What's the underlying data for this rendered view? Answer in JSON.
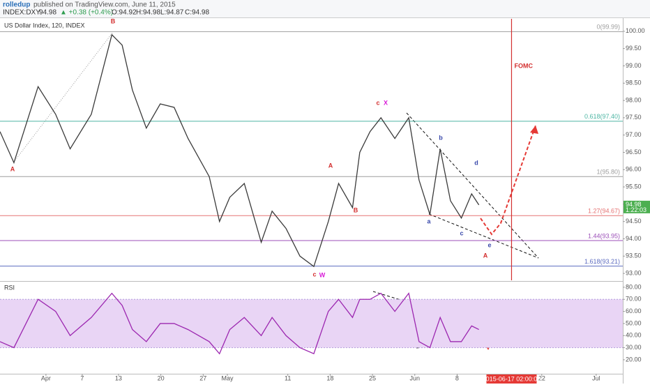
{
  "header": {
    "author": "rolledup",
    "published": "published on TradingView.com, June 11, 2015",
    "symbol": "INDEX:DXY",
    "price": "94.98",
    "change": "▲ +0.38 (+0.4%)",
    "open": "O:94.92",
    "high": "H:94.98",
    "low": "L:94.87",
    "close": "C:94.98"
  },
  "chart_data": [
    {
      "type": "line",
      "title": "US Dollar Index, 120, INDEX",
      "color": "#3a3a3a",
      "x": [
        83.4,
        85.7,
        89.7,
        92.6,
        95,
        98.5,
        101.9,
        103.6,
        105.3,
        107.6,
        109.9,
        112.2,
        114.5,
        118,
        119.7,
        121.4,
        123.8,
        126.6,
        128.4,
        130.7,
        133,
        135.3,
        137.7,
        139.4,
        141.7,
        142.9,
        144.6,
        146.4,
        148.7,
        151,
        152.7,
        154.5,
        156.2,
        157.9,
        159.7,
        161.4,
        162.6
      ],
      "values": [
        97.1,
        96.2,
        98.4,
        97.6,
        96.6,
        97.6,
        99.9,
        99.6,
        98.3,
        97.2,
        97.9,
        97.8,
        96.9,
        95.8,
        94.5,
        95.2,
        95.6,
        93.9,
        94.8,
        94.3,
        93.5,
        93.2,
        94.5,
        95.6,
        94.9,
        96.5,
        97.1,
        97.5,
        96.9,
        97.5,
        95.7,
        94.7,
        96.6,
        95.1,
        94.6,
        95.3,
        94.98
      ],
      "xlim": [
        83.4,
        186.4
      ],
      "ylim": [
        92.8,
        100.36
      ],
      "yticks": [
        {
          "value": 93,
          "label": "93.00"
        },
        {
          "value": 93.5,
          "label": "93.50"
        },
        {
          "value": 94,
          "label": "94.00"
        },
        {
          "value": 94.5,
          "label": "94.50"
        },
        {
          "value": 95,
          "label": "95.00"
        },
        {
          "value": 95.5,
          "label": "95.50"
        },
        {
          "value": 96,
          "label": "96.00"
        },
        {
          "value": 96.5,
          "label": "96.50"
        },
        {
          "value": 97,
          "label": "97.00"
        },
        {
          "value": 97.5,
          "label": "97.50"
        },
        {
          "value": 98,
          "label": "98.00"
        },
        {
          "value": 98.5,
          "label": "98.50"
        },
        {
          "value": 99,
          "label": "99.00"
        },
        {
          "value": 99.5,
          "label": "99.50"
        },
        {
          "value": 100,
          "label": "100.00"
        }
      ],
      "fib_levels": [
        {
          "value": 99.99,
          "label": "0(99.99)",
          "color": "#9e9e9e"
        },
        {
          "value": 97.4,
          "label": "0.618(97.40)",
          "color": "#4cb5a3"
        },
        {
          "value": 95.8,
          "label": "1(95.80)",
          "color": "#9e9e9e"
        },
        {
          "value": 94.67,
          "label": "1.27(94.67)",
          "color": "#e57373"
        },
        {
          "value": 93.95,
          "label": "1.44(93.95)",
          "color": "#9c4fb8"
        },
        {
          "value": 93.21,
          "label": "1.618(93.21)",
          "color": "#5c6bc0"
        }
      ],
      "event": {
        "x": 168,
        "label": "FOMC",
        "color": "#d32f2f"
      },
      "last": {
        "value": 94.98,
        "label": "94.98",
        "countdown": "1:22:03"
      },
      "annotations": [
        {
          "text": "B",
          "color": "#d32f2f"
        },
        {
          "text": "A",
          "color": "#d32f2f"
        },
        {
          "text": "A",
          "color": "#d32f2f"
        },
        {
          "text": "B",
          "color": "#d32f2f"
        },
        {
          "text": "c",
          "color": "#d32f2f"
        },
        {
          "text": "X",
          "color": "#d81bd8"
        },
        {
          "text": "c",
          "color": "#d32f2f"
        },
        {
          "text": "W",
          "color": "#d81bd8"
        },
        {
          "text": "b",
          "color": "#3949ab"
        },
        {
          "text": "a",
          "color": "#3949ab"
        },
        {
          "text": "c",
          "color": "#3949ab"
        },
        {
          "text": "d",
          "color": "#3949ab"
        },
        {
          "text": "e",
          "color": "#3949ab"
        },
        {
          "text": "A",
          "color": "#d32f2f"
        }
      ]
    },
    {
      "type": "line",
      "title": "RSI",
      "color": "#9c27b0",
      "x": [
        83.4,
        85.7,
        89.7,
        92.6,
        95,
        98.5,
        101.9,
        103.6,
        105.3,
        107.6,
        109.9,
        112.2,
        114.5,
        118,
        119.7,
        121.4,
        123.8,
        126.6,
        128.4,
        130.7,
        133,
        135.3,
        137.7,
        139.4,
        141.7,
        142.9,
        144.6,
        146.4,
        148.7,
        151,
        152.7,
        154.5,
        156.2,
        157.9,
        159.7,
        161.4,
        162.6
      ],
      "values": [
        35,
        30,
        70,
        60,
        40,
        55,
        75,
        65,
        45,
        35,
        50,
        50,
        45,
        35,
        25,
        45,
        55,
        40,
        55,
        40,
        30,
        25,
        60,
        70,
        55,
        70,
        70,
        75,
        60,
        75,
        35,
        30,
        55,
        35,
        35,
        48,
        45
      ],
      "xlim": [
        83.4,
        186.4
      ],
      "ylim": [
        9,
        84
      ],
      "band": [
        30,
        70
      ],
      "band_color": "#e9d5f5",
      "yticks": [
        {
          "value": 20,
          "label": "20.00"
        },
        {
          "value": 30,
          "label": "30.00"
        },
        {
          "value": 40,
          "label": "40.00"
        },
        {
          "value": 50,
          "label": "50.00"
        },
        {
          "value": 60,
          "label": "60.00"
        },
        {
          "value": 70,
          "label": "70.00"
        },
        {
          "value": 80,
          "label": "80.00"
        }
      ],
      "xticks": [
        {
          "value": 91,
          "label": "Apr"
        },
        {
          "value": 97,
          "label": "7"
        },
        {
          "value": 103,
          "label": "13"
        },
        {
          "value": 110,
          "label": "20"
        },
        {
          "value": 117,
          "label": "27"
        },
        {
          "value": 121,
          "label": "May"
        },
        {
          "value": 131,
          "label": "11"
        },
        {
          "value": 138,
          "label": "18"
        },
        {
          "value": 145,
          "label": "25"
        },
        {
          "value": 152,
          "label": "Jun"
        },
        {
          "value": 159,
          "label": "8"
        },
        {
          "value": 173,
          "label": "22"
        },
        {
          "value": 182,
          "label": "Jul"
        }
      ],
      "cursor": {
        "x": 168,
        "label": "2015-06-17 02:00:00"
      }
    }
  ]
}
